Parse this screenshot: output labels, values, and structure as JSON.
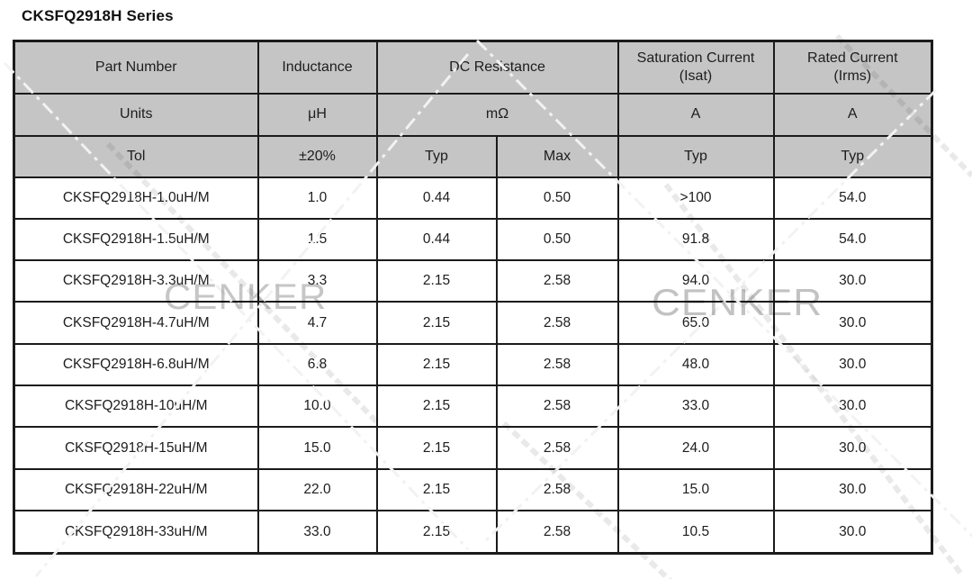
{
  "title": "CKSFQ2918H Series",
  "watermark": {
    "left_text": "CENKER",
    "right_text": "CENKER"
  },
  "colors": {
    "header_bg": "#c5c5c5",
    "border": "#1b1b1b",
    "watermark_gray": "#c6c6c6",
    "dash_line": "#f2f2f2"
  },
  "table": {
    "col_headers": {
      "part_number": "Part Number",
      "inductance": "Inductance",
      "dc_resistance": "DC Resistance",
      "saturation_current": "Saturation Current",
      "saturation_current_sub": "(Isat)",
      "rated_current": "Rated Current",
      "rated_current_sub": "(Irms)"
    },
    "units_row": {
      "label": "Units",
      "inductance": "μH",
      "dc_resistance": "mΩ",
      "saturation_current": "A",
      "rated_current": "A"
    },
    "tol_row": {
      "label": "Tol",
      "inductance": "±20%",
      "dc_typ": "Typ",
      "dc_max": "Max",
      "saturation": "Typ",
      "rated": "Typ"
    },
    "rows": [
      {
        "part": "CKSFQ2918H-1.0uH/M",
        "inductance": "1.0",
        "dcr_typ": "0.44",
        "dcr_max": "0.50",
        "isat": ">100",
        "irms": "54.0"
      },
      {
        "part": "CKSFQ2918H-1.5uH/M",
        "inductance": "1.5",
        "dcr_typ": "0.44",
        "dcr_max": "0.50",
        "isat": "91.8",
        "irms": "54.0"
      },
      {
        "part": "CKSFQ2918H-3.3uH/M",
        "inductance": "3.3",
        "dcr_typ": "2.15",
        "dcr_max": "2.58",
        "isat": "94.0",
        "irms": "30.0"
      },
      {
        "part": "CKSFQ2918H-4.7uH/M",
        "inductance": "4.7",
        "dcr_typ": "2.15",
        "dcr_max": "2.58",
        "isat": "65.0",
        "irms": "30.0"
      },
      {
        "part": "CKSFQ2918H-6.8uH/M",
        "inductance": "6.8",
        "dcr_typ": "2.15",
        "dcr_max": "2.58",
        "isat": "48.0",
        "irms": "30.0"
      },
      {
        "part": "CKSFQ2918H-10uH/M",
        "inductance": "10.0",
        "dcr_typ": "2.15",
        "dcr_max": "2.58",
        "isat": "33.0",
        "irms": "30.0"
      },
      {
        "part": "CKSFQ2918H-15uH/M",
        "inductance": "15.0",
        "dcr_typ": "2.15",
        "dcr_max": "2.58",
        "isat": "24.0",
        "irms": "30.0"
      },
      {
        "part": "CKSFQ2918H-22uH/M",
        "inductance": "22.0",
        "dcr_typ": "2.15",
        "dcr_max": "2.58",
        "isat": "15.0",
        "irms": "30.0"
      },
      {
        "part": "CKSFQ2918H-33uH/M",
        "inductance": "33.0",
        "dcr_typ": "2.15",
        "dcr_max": "2.58",
        "isat": "10.5",
        "irms": "30.0"
      }
    ]
  }
}
